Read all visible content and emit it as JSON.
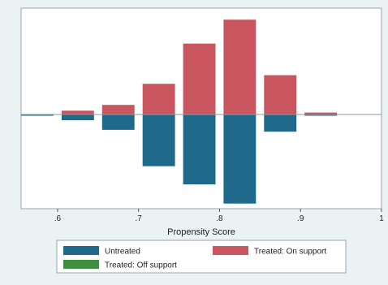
{
  "chart_data": {
    "type": "bar",
    "title": "",
    "xlabel": "Propensity Score",
    "ylabel": "",
    "xlim": [
      0.555,
      1.0
    ],
    "ylim": [
      -0.95,
      1.0
    ],
    "x_ticks": [
      0.6,
      0.7,
      0.8,
      0.9,
      1.0
    ],
    "x_tick_labels": [
      ".6",
      ".7",
      ".8",
      ".9",
      "1"
    ],
    "bin_width": 0.04,
    "bin_centers": [
      0.575,
      0.625,
      0.675,
      0.725,
      0.775,
      0.825,
      0.875,
      0.925
    ],
    "series": [
      {
        "name": "Untreated",
        "color": "#1f6a8a",
        "values": [
          -0.01,
          -0.06,
          -0.16,
          -0.54,
          -0.73,
          -0.93,
          -0.18,
          -0.01
        ]
      },
      {
        "name": "Treated: On support",
        "color": "#c9565e",
        "values": [
          0.0,
          0.04,
          0.1,
          0.32,
          0.74,
          0.99,
          0.41,
          0.02
        ]
      },
      {
        "name": "Treated: Off support",
        "color": "#3f8f3f",
        "values": [
          0,
          0,
          0,
          0,
          0,
          0,
          0,
          0
        ]
      }
    ],
    "grid": false,
    "legend_position": "bottom"
  }
}
